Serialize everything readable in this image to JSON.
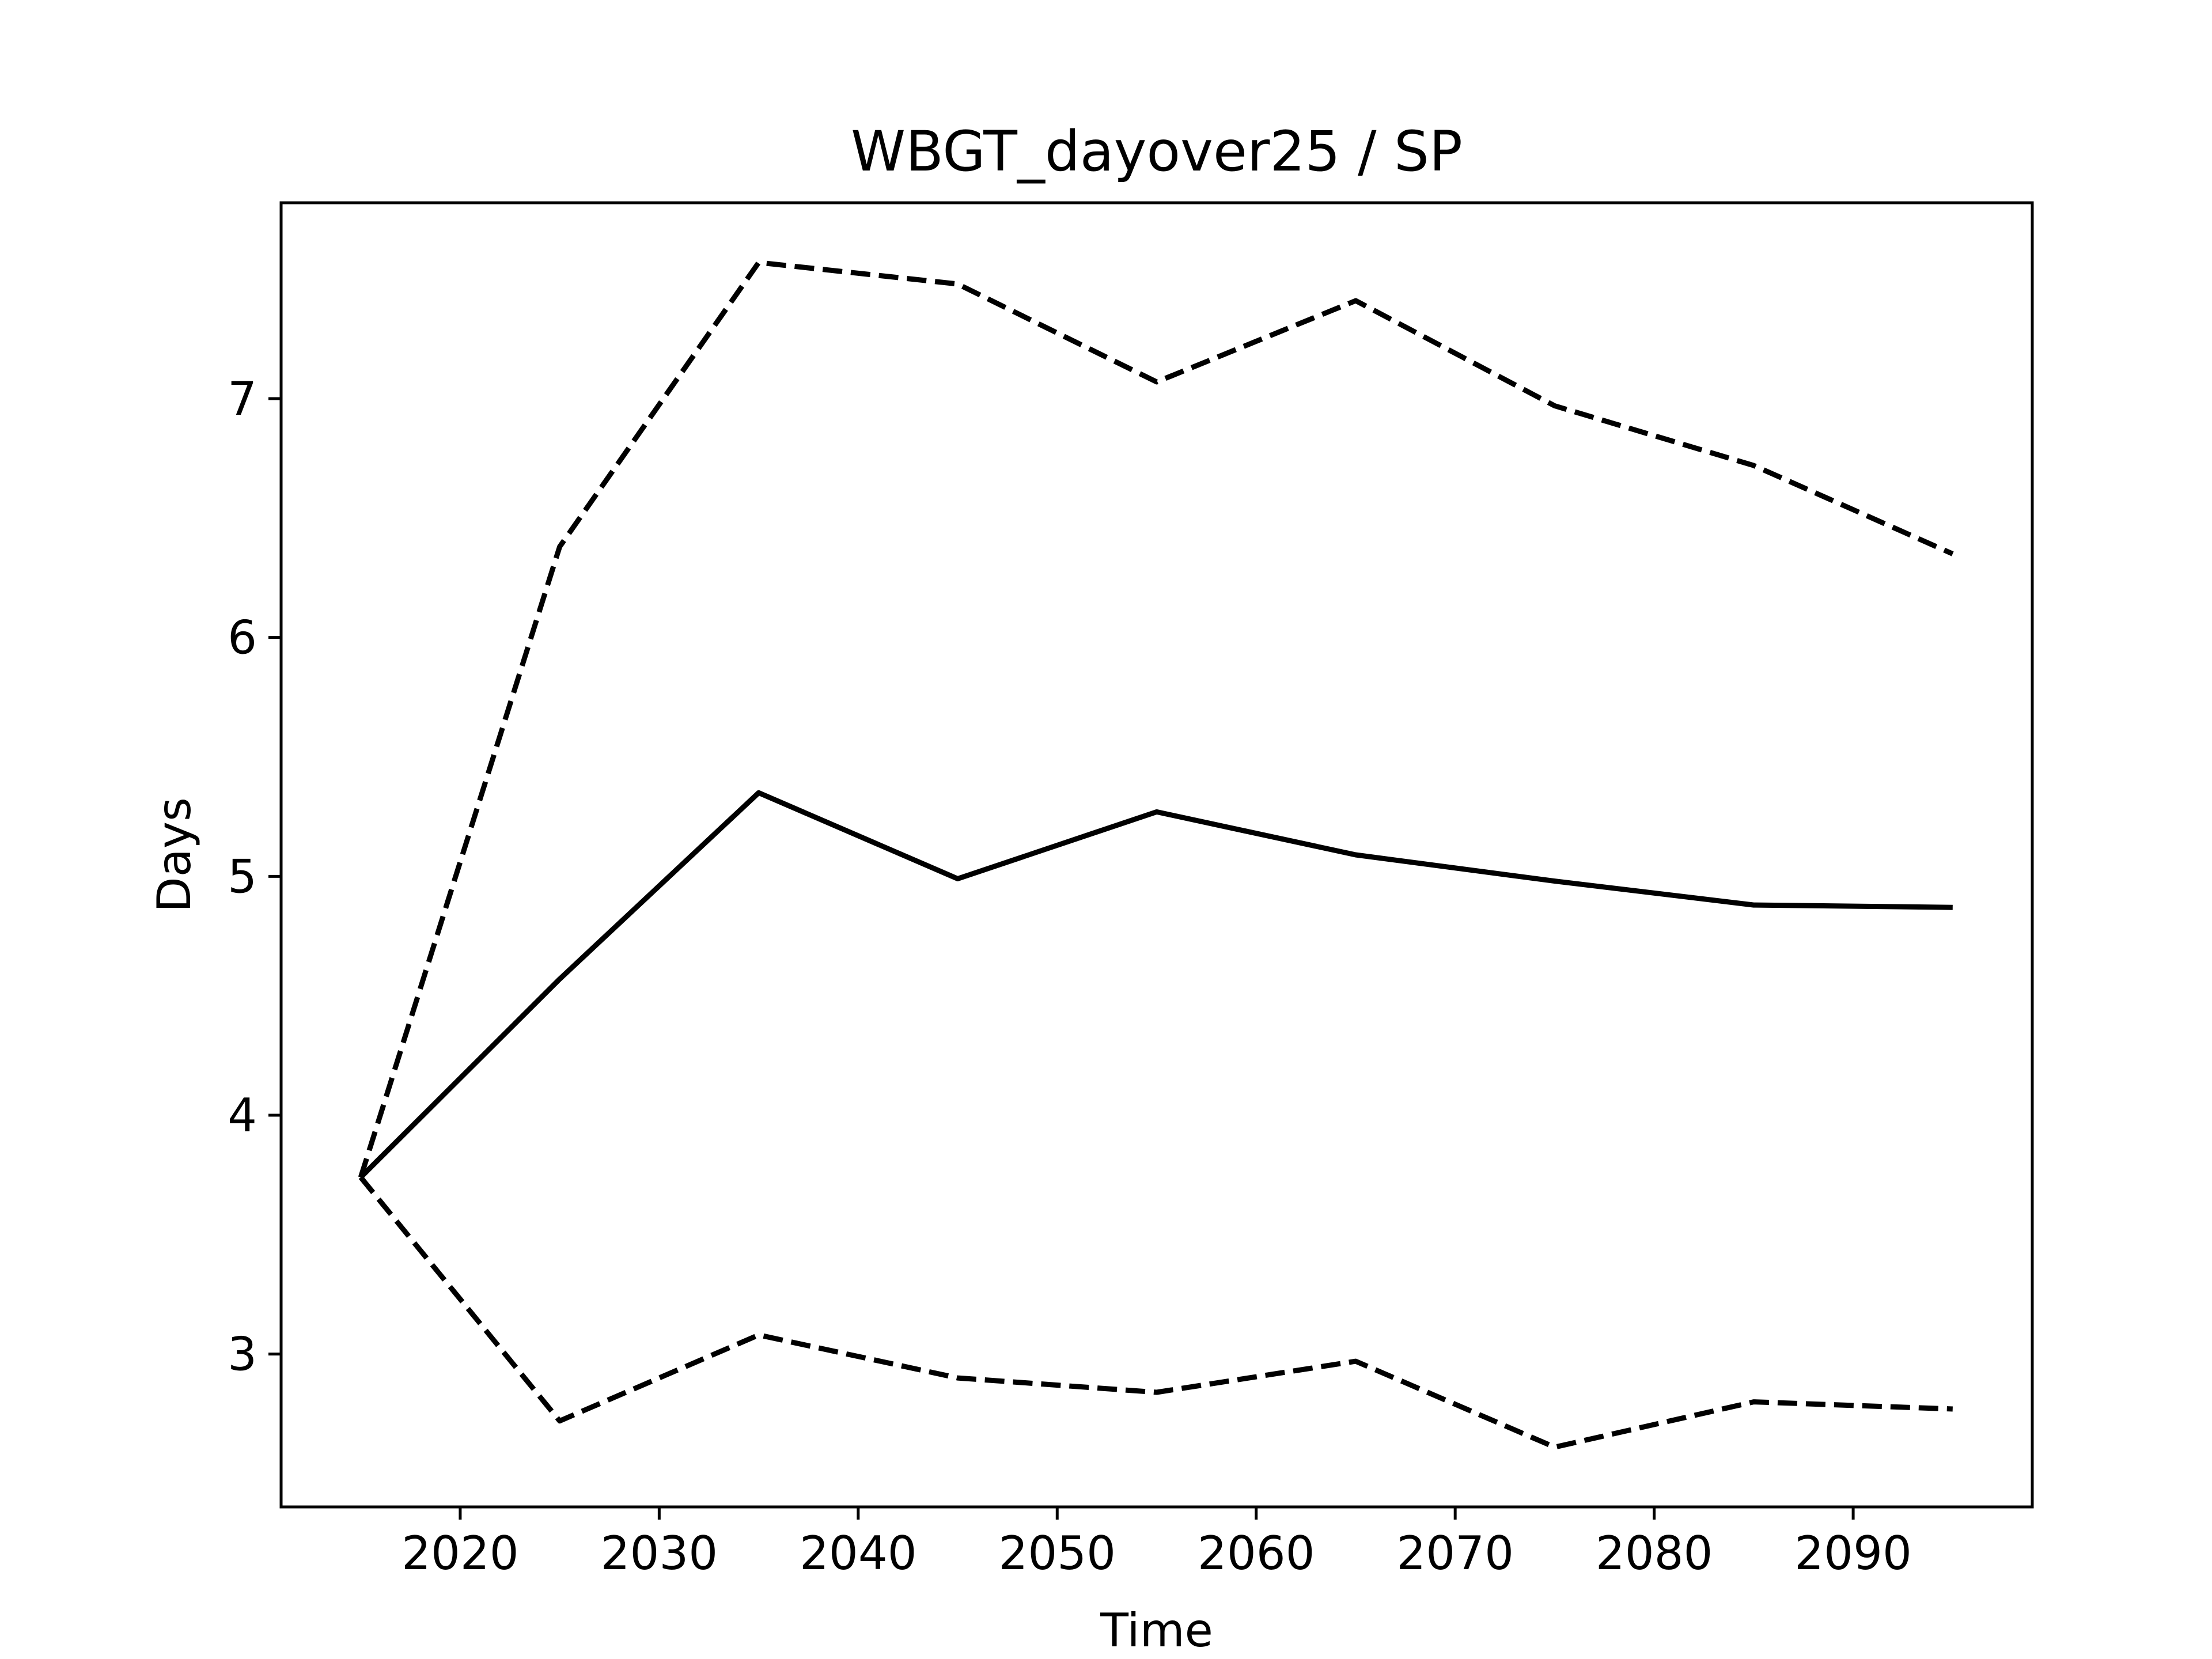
{
  "chart_data": {
    "type": "line",
    "title": "WBGT_dayover25 / SP",
    "xlabel": "Time",
    "ylabel": "Days",
    "x": [
      2015,
      2025,
      2035,
      2045,
      2055,
      2065,
      2075,
      2085,
      2095
    ],
    "series": [
      {
        "style": "solid",
        "color": "#000000",
        "values": [
          3.74,
          4.57,
          5.35,
          4.99,
          5.27,
          5.09,
          4.98,
          4.88,
          4.87
        ]
      },
      {
        "style": "dashed",
        "color": "#000000",
        "values": [
          3.74,
          6.38,
          7.57,
          7.48,
          7.07,
          7.41,
          6.97,
          6.72,
          6.35
        ]
      },
      {
        "style": "dashed",
        "color": "#000000",
        "values": [
          3.74,
          2.72,
          3.08,
          2.9,
          2.84,
          2.97,
          2.61,
          2.8,
          2.77
        ]
      }
    ],
    "xlim": [
      2011,
      2099
    ],
    "ylim": [
      2.36,
      7.82
    ],
    "xticks": [
      2020,
      2030,
      2040,
      2050,
      2060,
      2070,
      2080,
      2090
    ],
    "yticks": [
      3,
      4,
      5,
      6,
      7
    ],
    "grid": false,
    "legend": "none"
  }
}
